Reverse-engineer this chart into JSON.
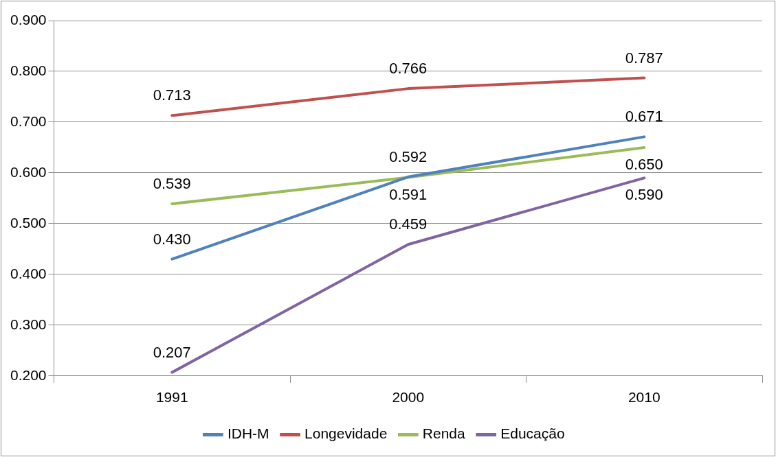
{
  "chart_data": {
    "type": "line",
    "categories": [
      "1991",
      "2000",
      "2010"
    ],
    "series": [
      {
        "name": "IDH-M",
        "color": "#4f81bd",
        "values": [
          0.43,
          0.592,
          0.671
        ],
        "value_labels": [
          "0.430",
          "0.592",
          "0.671"
        ]
      },
      {
        "name": "Longevidade",
        "color": "#c0504d",
        "values": [
          0.713,
          0.766,
          0.787
        ],
        "value_labels": [
          "0.713",
          "0.766",
          "0.787"
        ]
      },
      {
        "name": "Renda",
        "color": "#9bbb59",
        "values": [
          0.539,
          0.591,
          0.65
        ],
        "value_labels": [
          "0.539",
          "0.591",
          "0.650"
        ]
      },
      {
        "name": "Educação",
        "color": "#8064a2",
        "values": [
          0.207,
          0.459,
          0.59
        ],
        "value_labels": [
          "0.207",
          "0.459",
          "0.590"
        ]
      }
    ],
    "ylim": [
      0.2,
      0.9
    ],
    "yticks": [
      {
        "value": 0.2,
        "label": "0.200"
      },
      {
        "value": 0.3,
        "label": "0.300"
      },
      {
        "value": 0.4,
        "label": "0.400"
      },
      {
        "value": 0.5,
        "label": "0.500"
      },
      {
        "value": 0.6,
        "label": "0.600"
      },
      {
        "value": 0.7,
        "label": "0.700"
      },
      {
        "value": 0.8,
        "label": "0.800"
      },
      {
        "value": 0.9,
        "label": "0.900"
      }
    ],
    "grid": "y",
    "legend": "bottom",
    "marker": "none",
    "line_style": "solid"
  }
}
